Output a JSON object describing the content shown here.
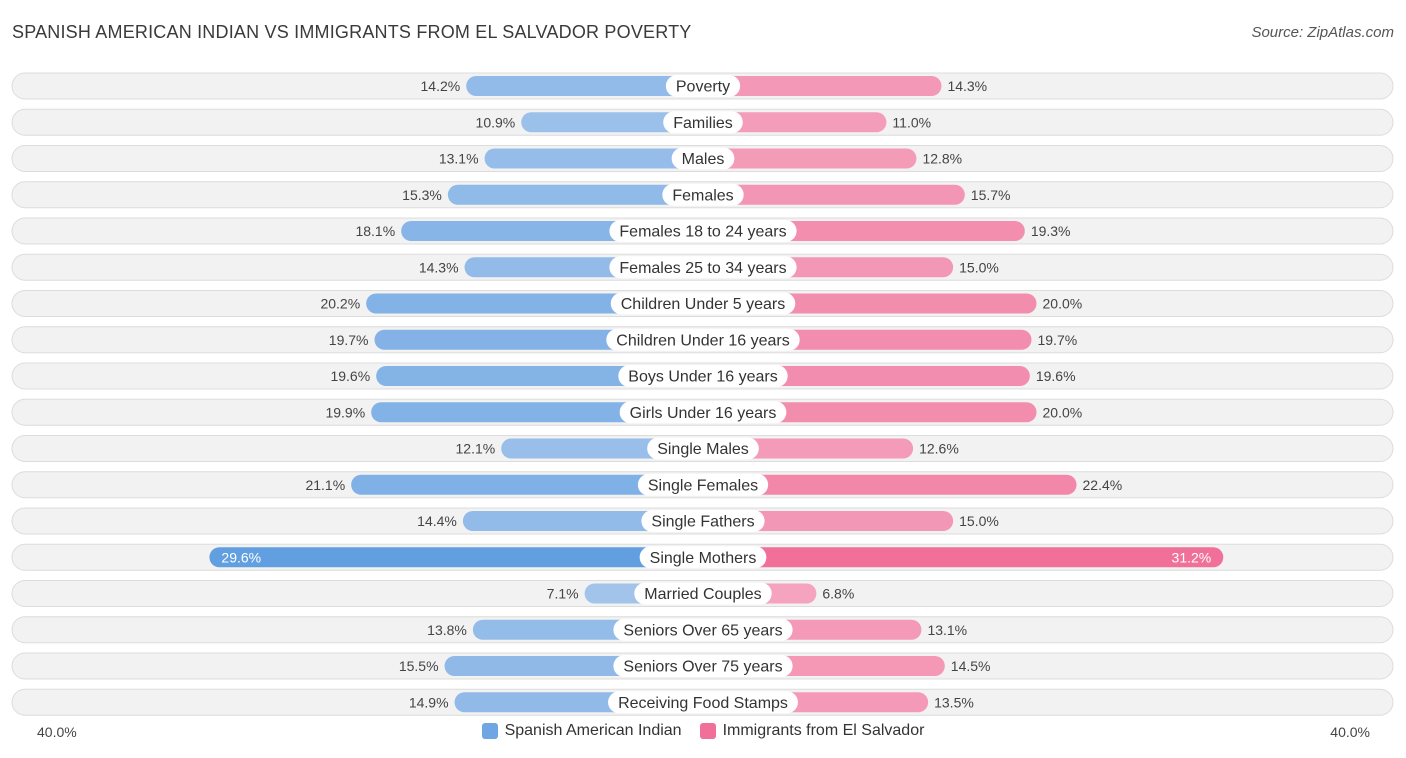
{
  "header": {
    "title": "SPANISH AMERICAN INDIAN VS IMMIGRANTS FROM EL SALVADOR POVERTY",
    "source": "Source: ZipAtlas.com"
  },
  "colors": {
    "left_light": "#a9c8ec",
    "left_dark": "#5b9be0",
    "right_light": "#f5a8c2",
    "right_dark": "#f0709a"
  },
  "axis": {
    "left_label": "40.0%",
    "right_label": "40.0%"
  },
  "chart_data": {
    "type": "bar",
    "orientation": "horizontal-diverging",
    "xlim": [
      0,
      40
    ],
    "categories": [
      "Poverty",
      "Families",
      "Males",
      "Females",
      "Females 18 to 24 years",
      "Females 25 to 34 years",
      "Children Under 5 years",
      "Children Under 16 years",
      "Boys Under 16 years",
      "Girls Under 16 years",
      "Single Males",
      "Single Females",
      "Single Fathers",
      "Single Mothers",
      "Married Couples",
      "Seniors Over 65 years",
      "Seniors Over 75 years",
      "Receiving Food Stamps"
    ],
    "series": [
      {
        "name": "Spanish American Indian",
        "values": [
          14.2,
          10.9,
          13.1,
          15.3,
          18.1,
          14.3,
          20.2,
          19.7,
          19.6,
          19.9,
          12.1,
          21.1,
          14.4,
          29.6,
          7.1,
          13.8,
          15.5,
          14.9
        ],
        "labels": [
          "14.2%",
          "10.9%",
          "13.1%",
          "15.3%",
          "18.1%",
          "14.3%",
          "20.2%",
          "19.7%",
          "19.6%",
          "19.9%",
          "12.1%",
          "21.1%",
          "14.4%",
          "29.6%",
          "7.1%",
          "13.8%",
          "15.5%",
          "14.9%"
        ]
      },
      {
        "name": "Immigrants from El Salvador",
        "values": [
          14.3,
          11.0,
          12.8,
          15.7,
          19.3,
          15.0,
          20.0,
          19.7,
          19.6,
          20.0,
          12.6,
          22.4,
          15.0,
          31.2,
          6.8,
          13.1,
          14.5,
          13.5
        ],
        "labels": [
          "14.3%",
          "11.0%",
          "12.8%",
          "15.7%",
          "19.3%",
          "15.0%",
          "20.0%",
          "19.7%",
          "19.6%",
          "20.0%",
          "12.6%",
          "22.4%",
          "15.0%",
          "31.2%",
          "6.8%",
          "13.1%",
          "14.5%",
          "13.5%"
        ]
      }
    ],
    "legend": [
      "Spanish American Indian",
      "Immigrants from El Salvador"
    ],
    "legend_position": "bottom-center"
  }
}
